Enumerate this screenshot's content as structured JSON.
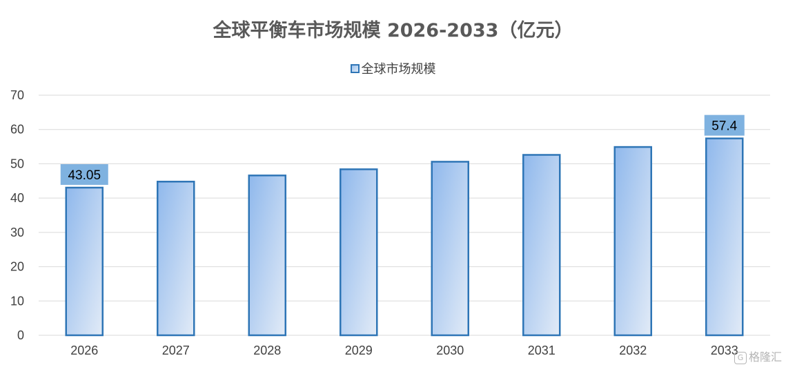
{
  "chart_data": {
    "type": "bar",
    "title": "全球平衡车市场规模 2026-2033（亿元）",
    "categories": [
      "2026",
      "2027",
      "2028",
      "2029",
      "2030",
      "2031",
      "2032",
      "2033"
    ],
    "series": [
      {
        "name": "全球市场规模",
        "values": [
          43.05,
          44.8,
          46.6,
          48.4,
          50.6,
          52.6,
          54.9,
          57.4
        ]
      }
    ],
    "data_labels": [
      {
        "category": "2026",
        "text": "43.05"
      },
      {
        "category": "2033",
        "text": "57.4"
      }
    ],
    "xlabel": "",
    "ylabel": "",
    "ylim": [
      0,
      70
    ],
    "yticks": [
      0,
      10,
      20,
      30,
      40,
      50,
      60,
      70
    ],
    "grid": true,
    "legend_position": "top-center",
    "colors": {
      "bar_border": "#2E75B6",
      "bar_gradient_start": "#8FB8EC",
      "bar_gradient_end": "#E2EBF7",
      "data_label_bg": "#7FB2E0",
      "grid": "#D9D9D9",
      "axis_text": "#404040"
    }
  },
  "watermark": {
    "logo_glyph": "G",
    "text": "格隆汇"
  }
}
